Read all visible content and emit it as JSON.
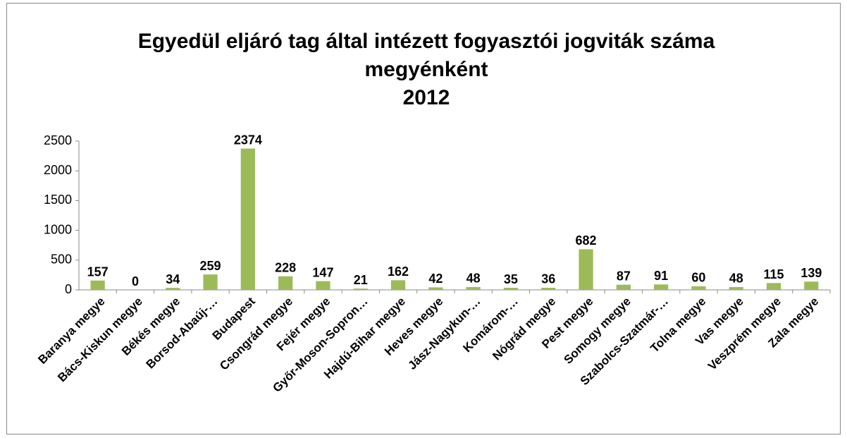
{
  "chart_data": {
    "type": "bar",
    "title": [
      "Egyedül eljáró tag által intézett fogyasztói jogviták száma",
      "megyénként",
      "2012"
    ],
    "categories": [
      "Baranya megye",
      "Bács-Kiskun megye",
      "Békés megye",
      "Borsod-Abaúj-…",
      "Budapest",
      "Csongrád megye",
      "Fejér megye",
      "Győr-Moson-Sopron…",
      "Hajdú-Bihar megye",
      "Heves megye",
      "Jász-Nagykun-…",
      "Komárom-…",
      "Nógrád megye",
      "Pest  megye",
      "Somogy megye",
      "Szabolcs-Szatmár-…",
      "Tolna  megye",
      "Vas megye",
      "Veszprém megye",
      "Zala megye"
    ],
    "values": [
      157,
      0,
      34,
      259,
      2374,
      228,
      147,
      21,
      162,
      42,
      48,
      35,
      36,
      682,
      87,
      91,
      60,
      48,
      115,
      139
    ],
    "color": "#9bbb59",
    "ylim": [
      0,
      2500
    ],
    "yticks": [
      0,
      500,
      1000,
      1500,
      2000,
      2500
    ],
    "grid": false
  }
}
